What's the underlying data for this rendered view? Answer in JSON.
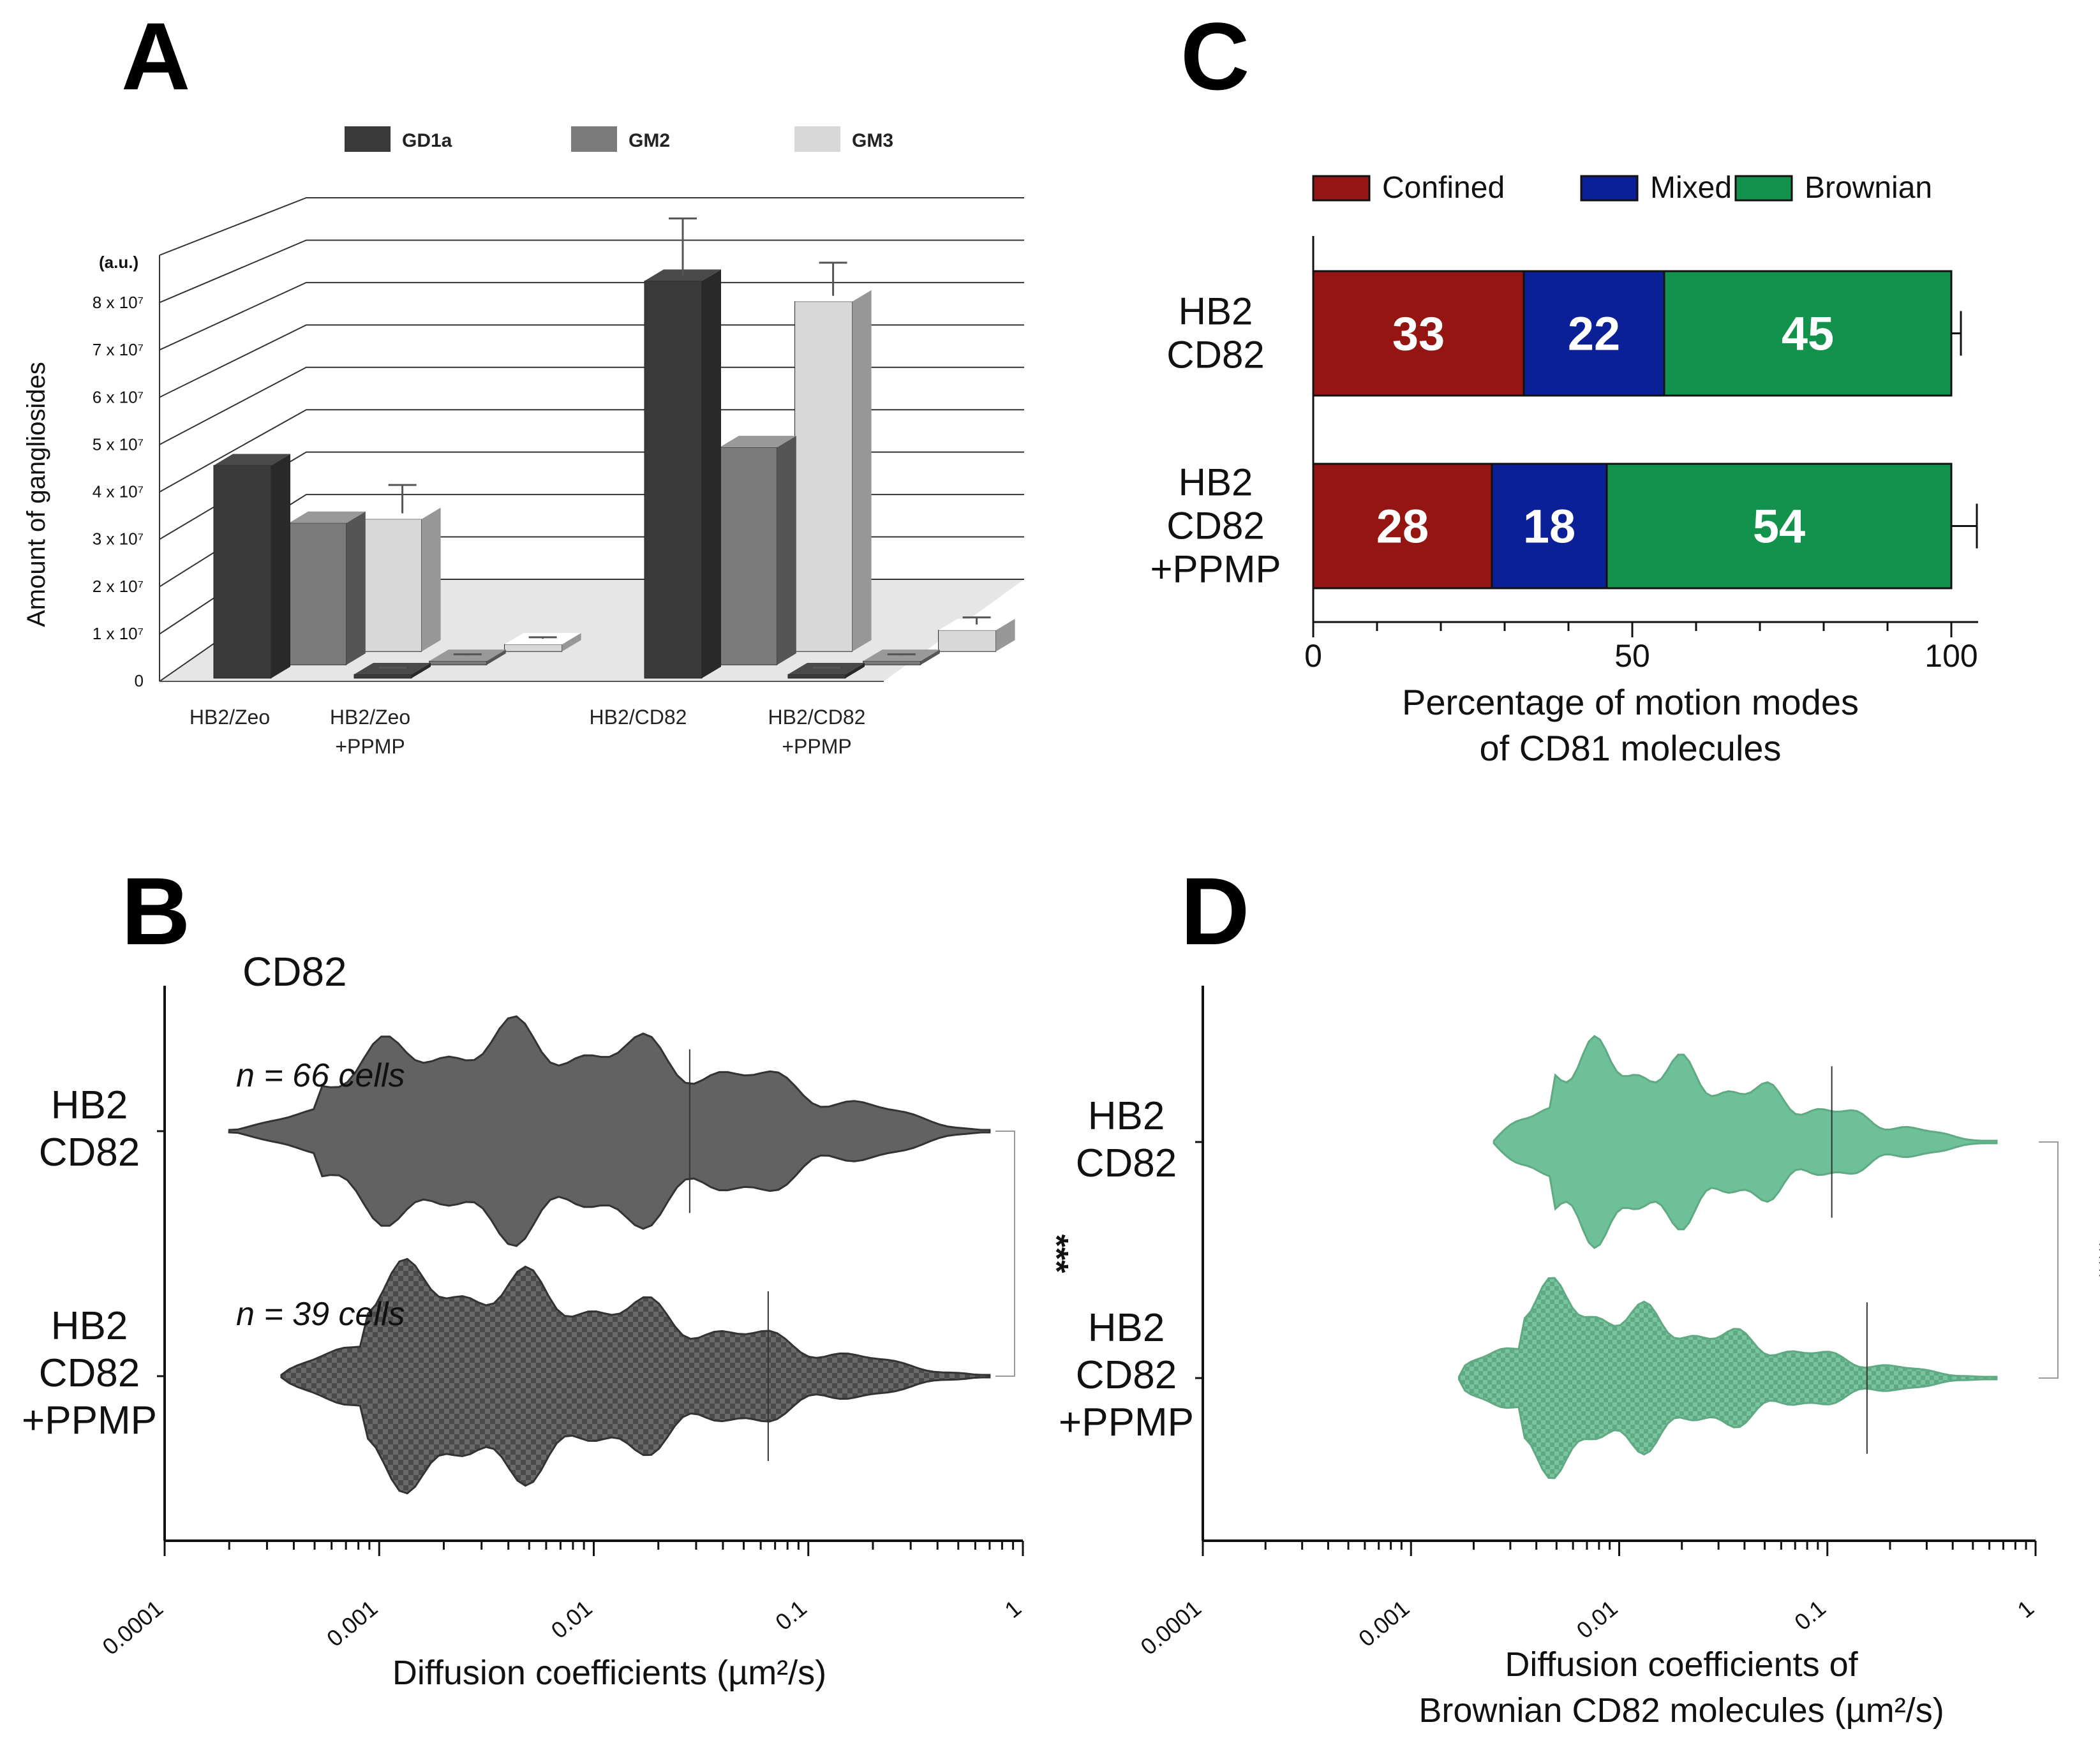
{
  "figure": {
    "panels": {
      "A": "A",
      "B": "B",
      "C": "C",
      "D": "D"
    },
    "colors": {
      "gd1a": "#3a3a3a",
      "gm2": "#7a7a7a",
      "gm3": "#d8d8d8",
      "confined": "#951512",
      "mixed": "#0b1f96",
      "brownian": "#12924c",
      "violin_dark": "#626262",
      "violin_green": "#6ec09a",
      "violin_green_dark": "#5faa82"
    }
  },
  "chart_data": [
    {
      "id": "A",
      "type": "bar",
      "title": "",
      "ylabel": "Amount of gangliosides",
      "yunit": "(a.u.)",
      "ylim": [
        0,
        80000000
      ],
      "ytick_labels": [
        "0",
        "1 x 10⁷",
        "2 x 10⁷",
        "3 x 10⁷",
        "4 x 10⁷",
        "5 x 10⁷",
        "6 x 10⁷",
        "7 x 10⁷",
        "8 x 10⁷"
      ],
      "categories": [
        "HB2/Zeo",
        "HB2/Zeo\n+PPMP",
        "HB2/CD82",
        "HB2/CD82\n+PPMP"
      ],
      "series": [
        {
          "name": "GD1a",
          "values": [
            45000000,
            500000,
            84000000,
            500000
          ],
          "errors": [
            0,
            200000,
            12000000,
            200000
          ]
        },
        {
          "name": "GM2",
          "values": [
            30000000,
            500000,
            46000000,
            500000
          ],
          "errors": [
            0,
            200000,
            0,
            200000
          ]
        },
        {
          "name": "GM3",
          "values": [
            28000000,
            1500000,
            74000000,
            4500000
          ],
          "errors": [
            6000000,
            300000,
            7000000,
            1500000
          ]
        }
      ],
      "legend": [
        "GD1a",
        "GM2",
        "GM3"
      ]
    },
    {
      "id": "C",
      "type": "bar",
      "orientation": "horizontal-stacked",
      "title": "",
      "xlabel": "Percentage of motion modes\nof CD81 molecules",
      "xlim": [
        0,
        100
      ],
      "xticks": [
        0,
        50,
        100
      ],
      "categories": [
        "HB2\nCD82",
        "HB2\nCD82\n+PPMP"
      ],
      "series": [
        {
          "name": "Confined",
          "values": [
            33,
            28
          ],
          "errors": [
            1.5,
            3.5
          ]
        },
        {
          "name": "Mixed",
          "values": [
            22,
            18
          ],
          "errors": [
            2,
            1
          ]
        },
        {
          "name": "Brownian",
          "values": [
            45,
            54
          ],
          "errors": [
            1.5,
            4
          ]
        }
      ],
      "legend": [
        "Confined",
        "Mixed",
        "Brownian"
      ]
    },
    {
      "id": "B",
      "type": "violin",
      "title": "CD82",
      "xlabel": "Diffusion coefficients (µm²/s)",
      "xscale": "log",
      "xlim": [
        0.0001,
        1
      ],
      "xticks": [
        0.0001,
        0.001,
        0.01,
        0.1,
        1
      ],
      "xtick_labels": [
        "0.0001",
        "0.001",
        "0.01",
        "0.1",
        "1"
      ],
      "categories": [
        "HB2\nCD82",
        "HB2\nCD82\n+PPMP"
      ],
      "violins": [
        {
          "label": "HB2 CD82",
          "annotation": "n = 66 cells",
          "min": 0.0002,
          "max": 0.7,
          "median": 0.028,
          "pattern": "solid"
        },
        {
          "label": "HB2 CD82 +PPMP",
          "annotation": "n = 39 cells",
          "min": 0.00035,
          "max": 0.7,
          "median": 0.065,
          "pattern": "checker"
        }
      ],
      "significance": "***"
    },
    {
      "id": "D",
      "type": "violin",
      "title": "",
      "xlabel": "Diffusion coefficients of\nBrownian CD82 molecules (µm²/s)",
      "xscale": "log",
      "xlim": [
        0.0001,
        1
      ],
      "xticks": [
        0.0001,
        0.001,
        0.01,
        0.1,
        1
      ],
      "xtick_labels": [
        "0.0001",
        "0.001",
        "0.01",
        "0.1",
        "1"
      ],
      "categories": [
        "HB2\nCD82",
        "HB2\nCD82\n+PPMP"
      ],
      "violins": [
        {
          "label": "HB2 CD82",
          "min": 0.0025,
          "max": 0.65,
          "median": 0.105,
          "pattern": "solid"
        },
        {
          "label": "HB2 CD82 +PPMP",
          "min": 0.0017,
          "max": 0.65,
          "median": 0.155,
          "pattern": "checker"
        }
      ],
      "significance": "***"
    }
  ]
}
